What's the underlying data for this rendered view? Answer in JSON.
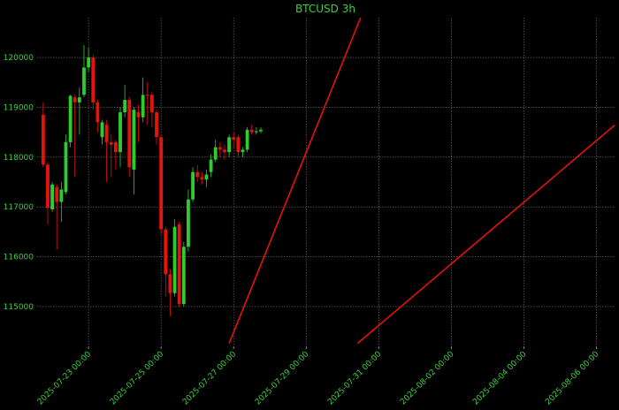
{
  "chart_data": {
    "type": "candlestick",
    "title": "BTCUSD 3h",
    "x": [
      "2025-07-21 18:00",
      "2025-07-21 21:00",
      "2025-07-22 00:00",
      "2025-07-22 03:00",
      "2025-07-22 06:00",
      "2025-07-22 09:00",
      "2025-07-22 12:00",
      "2025-07-22 15:00",
      "2025-07-22 18:00",
      "2025-07-22 21:00",
      "2025-07-23 00:00",
      "2025-07-23 03:00",
      "2025-07-23 06:00",
      "2025-07-23 09:00",
      "2025-07-23 12:00",
      "2025-07-23 15:00",
      "2025-07-23 18:00",
      "2025-07-23 21:00",
      "2025-07-24 00:00",
      "2025-07-24 03:00",
      "2025-07-24 06:00",
      "2025-07-24 09:00",
      "2025-07-24 12:00",
      "2025-07-24 15:00",
      "2025-07-24 18:00",
      "2025-07-24 21:00",
      "2025-07-25 00:00",
      "2025-07-25 03:00",
      "2025-07-25 06:00",
      "2025-07-25 09:00",
      "2025-07-25 12:00",
      "2025-07-25 15:00",
      "2025-07-25 18:00",
      "2025-07-25 21:00",
      "2025-07-26 00:00",
      "2025-07-26 03:00",
      "2025-07-26 06:00",
      "2025-07-26 09:00",
      "2025-07-26 12:00",
      "2025-07-26 15:00",
      "2025-07-26 18:00",
      "2025-07-26 21:00",
      "2025-07-27 00:00",
      "2025-07-27 03:00",
      "2025-07-27 06:00",
      "2025-07-27 09:00",
      "2025-07-27 12:00",
      "2025-07-27 15:00",
      "2025-07-27 18:00"
    ],
    "open": [
      118850,
      117850,
      116950,
      117400,
      117100,
      117300,
      118300,
      119200,
      119100,
      119250,
      119800,
      120000,
      119100,
      118400,
      118650,
      118300,
      118300,
      118100,
      118900,
      119150,
      117750,
      118900,
      118800,
      119250,
      119250,
      118900,
      118400,
      116550,
      115650,
      115270,
      116650,
      115050,
      116200,
      117150,
      117700,
      117600,
      117550,
      117700,
      117950,
      118200,
      118150,
      118100,
      118400,
      118400,
      118100,
      118150,
      118550,
      118500,
      118520
    ],
    "high": [
      119100,
      117900,
      117500,
      117450,
      117500,
      118450,
      119250,
      119250,
      119400,
      120250,
      120200,
      120050,
      119150,
      118750,
      118750,
      118450,
      118350,
      119000,
      119450,
      119200,
      119000,
      119050,
      119600,
      119500,
      119300,
      118950,
      118450,
      116600,
      115750,
      116750,
      116700,
      116300,
      117350,
      117800,
      117850,
      117700,
      117750,
      118050,
      118350,
      118300,
      118250,
      118450,
      118500,
      118450,
      118200,
      118600,
      118650,
      118600,
      118600
    ],
    "low": [
      117800,
      116650,
      116900,
      116150,
      116700,
      117250,
      118200,
      117600,
      118450,
      119200,
      119700,
      118950,
      118500,
      118250,
      117500,
      117600,
      117750,
      117800,
      118800,
      117600,
      117250,
      118300,
      118700,
      118650,
      118600,
      118250,
      116450,
      115200,
      114800,
      115200,
      115000,
      115000,
      116100,
      117100,
      117500,
      117450,
      117400,
      117600,
      117900,
      118000,
      117950,
      118000,
      118200,
      118000,
      118000,
      118100,
      118450,
      118450,
      118480
    ],
    "close": [
      117850,
      116980,
      117450,
      117100,
      117350,
      118300,
      119230,
      119100,
      119200,
      119800,
      120000,
      119100,
      118700,
      118700,
      118300,
      118250,
      118100,
      118900,
      119150,
      117800,
      118950,
      118800,
      119250,
      119230,
      118900,
      118400,
      116550,
      115650,
      115270,
      116600,
      115050,
      116200,
      117150,
      117700,
      117600,
      117550,
      117650,
      117950,
      118200,
      118150,
      118100,
      118400,
      118350,
      118100,
      118150,
      118550,
      118500,
      118520,
      118550
    ],
    "up_color": "#2ecc2e",
    "down_color": "#e8120c",
    "lines": [
      {
        "x": [
          "2025-07-26 21:00",
          "2025-07-30 12:00"
        ],
        "y": [
          114260,
          120800
        ],
        "color": "#e8120c"
      },
      {
        "x": [
          "2025-07-30 10:00",
          "2025-08-06 12:00"
        ],
        "y": [
          114260,
          118640
        ],
        "color": "#e8120c"
      }
    ],
    "xlim": [
      "2025-07-21 14:00",
      "2025-08-06 12:00"
    ],
    "xticks": [
      "2025-07-23 00:00",
      "2025-07-25 00:00",
      "2025-07-27 00:00",
      "2025-07-29 00:00",
      "2025-07-31 00:00",
      "2025-08-02 00:00",
      "2025-08-04 00:00",
      "2025-08-06 00:00"
    ],
    "ylim": [
      114200,
      120800
    ],
    "yticks": [
      115000,
      116000,
      117000,
      118000,
      119000,
      120000
    ],
    "grid": true
  }
}
